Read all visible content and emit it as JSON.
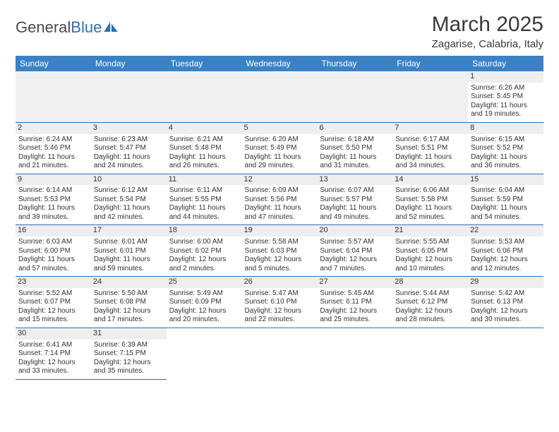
{
  "brand": {
    "part1": "General",
    "part2": "Blue"
  },
  "title": "March 2025",
  "location": "Zagarise, Calabria, Italy",
  "day_headers": [
    "Sunday",
    "Monday",
    "Tuesday",
    "Wednesday",
    "Thursday",
    "Friday",
    "Saturday"
  ],
  "header_bg": "#3b82c4",
  "header_fg": "#ffffff",
  "border_color": "#2e6fb4",
  "daynum_bg": "#eeeeee",
  "font_family": "Arial",
  "cell_fontsize": 10,
  "weeks": [
    [
      null,
      null,
      null,
      null,
      null,
      null,
      {
        "n": "1",
        "sr": "Sunrise: 6:26 AM",
        "ss": "Sunset: 5:45 PM",
        "dl1": "Daylight: 11 hours",
        "dl2": "and 19 minutes."
      }
    ],
    [
      {
        "n": "2",
        "sr": "Sunrise: 6:24 AM",
        "ss": "Sunset: 5:46 PM",
        "dl1": "Daylight: 11 hours",
        "dl2": "and 21 minutes."
      },
      {
        "n": "3",
        "sr": "Sunrise: 6:23 AM",
        "ss": "Sunset: 5:47 PM",
        "dl1": "Daylight: 11 hours",
        "dl2": "and 24 minutes."
      },
      {
        "n": "4",
        "sr": "Sunrise: 6:21 AM",
        "ss": "Sunset: 5:48 PM",
        "dl1": "Daylight: 11 hours",
        "dl2": "and 26 minutes."
      },
      {
        "n": "5",
        "sr": "Sunrise: 6:20 AM",
        "ss": "Sunset: 5:49 PM",
        "dl1": "Daylight: 11 hours",
        "dl2": "and 29 minutes."
      },
      {
        "n": "6",
        "sr": "Sunrise: 6:18 AM",
        "ss": "Sunset: 5:50 PM",
        "dl1": "Daylight: 11 hours",
        "dl2": "and 31 minutes."
      },
      {
        "n": "7",
        "sr": "Sunrise: 6:17 AM",
        "ss": "Sunset: 5:51 PM",
        "dl1": "Daylight: 11 hours",
        "dl2": "and 34 minutes."
      },
      {
        "n": "8",
        "sr": "Sunrise: 6:15 AM",
        "ss": "Sunset: 5:52 PM",
        "dl1": "Daylight: 11 hours",
        "dl2": "and 36 minutes."
      }
    ],
    [
      {
        "n": "9",
        "sr": "Sunrise: 6:14 AM",
        "ss": "Sunset: 5:53 PM",
        "dl1": "Daylight: 11 hours",
        "dl2": "and 39 minutes."
      },
      {
        "n": "10",
        "sr": "Sunrise: 6:12 AM",
        "ss": "Sunset: 5:54 PM",
        "dl1": "Daylight: 11 hours",
        "dl2": "and 42 minutes."
      },
      {
        "n": "11",
        "sr": "Sunrise: 6:11 AM",
        "ss": "Sunset: 5:55 PM",
        "dl1": "Daylight: 11 hours",
        "dl2": "and 44 minutes."
      },
      {
        "n": "12",
        "sr": "Sunrise: 6:09 AM",
        "ss": "Sunset: 5:56 PM",
        "dl1": "Daylight: 11 hours",
        "dl2": "and 47 minutes."
      },
      {
        "n": "13",
        "sr": "Sunrise: 6:07 AM",
        "ss": "Sunset: 5:57 PM",
        "dl1": "Daylight: 11 hours",
        "dl2": "and 49 minutes."
      },
      {
        "n": "14",
        "sr": "Sunrise: 6:06 AM",
        "ss": "Sunset: 5:58 PM",
        "dl1": "Daylight: 11 hours",
        "dl2": "and 52 minutes."
      },
      {
        "n": "15",
        "sr": "Sunrise: 6:04 AM",
        "ss": "Sunset: 5:59 PM",
        "dl1": "Daylight: 11 hours",
        "dl2": "and 54 minutes."
      }
    ],
    [
      {
        "n": "16",
        "sr": "Sunrise: 6:03 AM",
        "ss": "Sunset: 6:00 PM",
        "dl1": "Daylight: 11 hours",
        "dl2": "and 57 minutes."
      },
      {
        "n": "17",
        "sr": "Sunrise: 6:01 AM",
        "ss": "Sunset: 6:01 PM",
        "dl1": "Daylight: 11 hours",
        "dl2": "and 59 minutes."
      },
      {
        "n": "18",
        "sr": "Sunrise: 6:00 AM",
        "ss": "Sunset: 6:02 PM",
        "dl1": "Daylight: 12 hours",
        "dl2": "and 2 minutes."
      },
      {
        "n": "19",
        "sr": "Sunrise: 5:58 AM",
        "ss": "Sunset: 6:03 PM",
        "dl1": "Daylight: 12 hours",
        "dl2": "and 5 minutes."
      },
      {
        "n": "20",
        "sr": "Sunrise: 5:57 AM",
        "ss": "Sunset: 6:04 PM",
        "dl1": "Daylight: 12 hours",
        "dl2": "and 7 minutes."
      },
      {
        "n": "21",
        "sr": "Sunrise: 5:55 AM",
        "ss": "Sunset: 6:05 PM",
        "dl1": "Daylight: 12 hours",
        "dl2": "and 10 minutes."
      },
      {
        "n": "22",
        "sr": "Sunrise: 5:53 AM",
        "ss": "Sunset: 6:06 PM",
        "dl1": "Daylight: 12 hours",
        "dl2": "and 12 minutes."
      }
    ],
    [
      {
        "n": "23",
        "sr": "Sunrise: 5:52 AM",
        "ss": "Sunset: 6:07 PM",
        "dl1": "Daylight: 12 hours",
        "dl2": "and 15 minutes."
      },
      {
        "n": "24",
        "sr": "Sunrise: 5:50 AM",
        "ss": "Sunset: 6:08 PM",
        "dl1": "Daylight: 12 hours",
        "dl2": "and 17 minutes."
      },
      {
        "n": "25",
        "sr": "Sunrise: 5:49 AM",
        "ss": "Sunset: 6:09 PM",
        "dl1": "Daylight: 12 hours",
        "dl2": "and 20 minutes."
      },
      {
        "n": "26",
        "sr": "Sunrise: 5:47 AM",
        "ss": "Sunset: 6:10 PM",
        "dl1": "Daylight: 12 hours",
        "dl2": "and 22 minutes."
      },
      {
        "n": "27",
        "sr": "Sunrise: 5:45 AM",
        "ss": "Sunset: 6:11 PM",
        "dl1": "Daylight: 12 hours",
        "dl2": "and 25 minutes."
      },
      {
        "n": "28",
        "sr": "Sunrise: 5:44 AM",
        "ss": "Sunset: 6:12 PM",
        "dl1": "Daylight: 12 hours",
        "dl2": "and 28 minutes."
      },
      {
        "n": "29",
        "sr": "Sunrise: 5:42 AM",
        "ss": "Sunset: 6:13 PM",
        "dl1": "Daylight: 12 hours",
        "dl2": "and 30 minutes."
      }
    ],
    [
      {
        "n": "30",
        "sr": "Sunrise: 6:41 AM",
        "ss": "Sunset: 7:14 PM",
        "dl1": "Daylight: 12 hours",
        "dl2": "and 33 minutes."
      },
      {
        "n": "31",
        "sr": "Sunrise: 6:39 AM",
        "ss": "Sunset: 7:15 PM",
        "dl1": "Daylight: 12 hours",
        "dl2": "and 35 minutes."
      },
      null,
      null,
      null,
      null,
      null
    ]
  ]
}
